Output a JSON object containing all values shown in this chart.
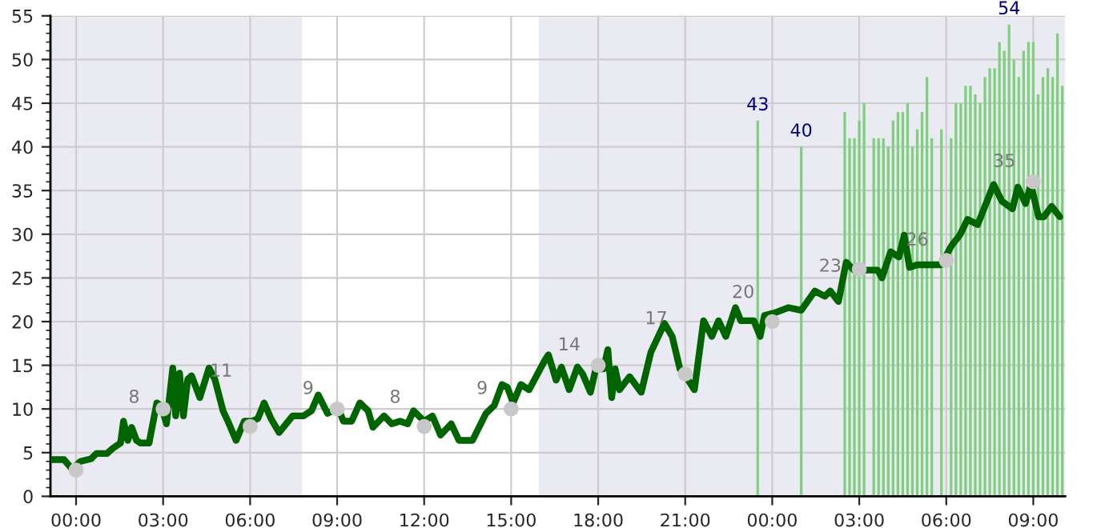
{
  "chart_data": {
    "type": "line",
    "xlim": [
      "1999-12-31T23:07",
      "2000-01-02T10:06"
    ],
    "xticks": [
      {
        "value": "2000-01-01T00:00",
        "label": "00:00"
      },
      {
        "value": "2000-01-01T03:00",
        "label": "03:00"
      },
      {
        "value": "2000-01-01T06:00",
        "label": "06:00"
      },
      {
        "value": "2000-01-01T09:00",
        "label": "09:00"
      },
      {
        "value": "2000-01-01T12:00",
        "label": "12:00"
      },
      {
        "value": "2000-01-01T15:00",
        "label": "15:00"
      },
      {
        "value": "2000-01-01T18:00",
        "label": "18:00"
      },
      {
        "value": "2000-01-01T21:00",
        "label": "21:00"
      },
      {
        "value": "2000-01-02T00:00",
        "label": "00:00"
      },
      {
        "value": "2000-01-02T03:00",
        "label": "03:00"
      },
      {
        "value": "2000-01-02T06:00",
        "label": "06:00"
      },
      {
        "value": "2000-01-02T09:00",
        "label": "09:00"
      }
    ],
    "ylim": [
      0,
      55
    ],
    "yticks": [
      0,
      5,
      10,
      15,
      20,
      25,
      30,
      35,
      40,
      45,
      50,
      55
    ],
    "grid": true,
    "bands": [
      {
        "axis": "x",
        "from": "1999-12-31T23:07",
        "to": "2000-01-01T07:47",
        "color": "#eaeaf2"
      },
      {
        "axis": "x",
        "from": "2000-01-01T15:57",
        "to": "2000-01-02T10:06",
        "color": "#eaeaf2"
      }
    ],
    "series": [
      {
        "type": "bar",
        "color": "#7fcf7f",
        "x": [
          "2000-01-01T23:30",
          "2000-01-02T01:00",
          "2000-01-02T02:30",
          "2000-01-02T02:40",
          "2000-01-02T02:50",
          "2000-01-02T03:00",
          "2000-01-02T03:10",
          "2000-01-02T03:30",
          "2000-01-02T03:40",
          "2000-01-02T03:50",
          "2000-01-02T04:00",
          "2000-01-02T04:10",
          "2000-01-02T04:20",
          "2000-01-02T04:30",
          "2000-01-02T04:40",
          "2000-01-02T04:50",
          "2000-01-02T05:00",
          "2000-01-02T05:10",
          "2000-01-02T05:20",
          "2000-01-02T05:30",
          "2000-01-02T05:50",
          "2000-01-02T06:10",
          "2000-01-02T06:20",
          "2000-01-02T06:30",
          "2000-01-02T06:40",
          "2000-01-02T06:50",
          "2000-01-02T07:00",
          "2000-01-02T07:10",
          "2000-01-02T07:20",
          "2000-01-02T07:30",
          "2000-01-02T07:40",
          "2000-01-02T07:50",
          "2000-01-02T08:00",
          "2000-01-02T08:10",
          "2000-01-02T08:20",
          "2000-01-02T08:30",
          "2000-01-02T08:40",
          "2000-01-02T08:50",
          "2000-01-02T09:00",
          "2000-01-02T09:10",
          "2000-01-02T09:20",
          "2000-01-02T09:30",
          "2000-01-02T09:40",
          "2000-01-02T09:50",
          "2000-01-02T10:00"
        ],
        "values": [
          43,
          40,
          44,
          41,
          41,
          43,
          45,
          41,
          41,
          41,
          40,
          43,
          44,
          44,
          45,
          40,
          42,
          44,
          48,
          41,
          42,
          41,
          45,
          45,
          47,
          47,
          46,
          45,
          48,
          49,
          49,
          52,
          51,
          54,
          50,
          48,
          51,
          52,
          52,
          46,
          48,
          49,
          48,
          53,
          47
        ],
        "value_labels": [
          "43",
          "40",
          null,
          null,
          null,
          null,
          null,
          null,
          null,
          null,
          null,
          null,
          null,
          null,
          null,
          null,
          null,
          null,
          null,
          null,
          null,
          null,
          null,
          null,
          null,
          null,
          null,
          null,
          null,
          null,
          null,
          null,
          null,
          "54",
          null,
          null,
          null,
          null,
          null,
          null,
          null,
          null,
          null,
          null,
          null
        ]
      },
      {
        "color": "#006400",
        "line_style": "solid",
        "marker": "none",
        "x": [
          "1999-12-31T23:08",
          "1999-12-31T23:35",
          "1999-12-31T23:52",
          "2000-01-01T00:09",
          "2000-01-01T00:31",
          "2000-01-01T00:42",
          "2000-01-01T01:04",
          "2000-01-01T01:16",
          "2000-01-01T01:32",
          "2000-01-01T01:38",
          "2000-01-01T01:47",
          "2000-01-01T01:55",
          "2000-01-01T02:05",
          "2000-01-01T02:13",
          "2000-01-01T02:31",
          "2000-01-01T02:47",
          "2000-01-01T02:56",
          "2000-01-01T03:07",
          "2000-01-01T03:20",
          "2000-01-01T03:26",
          "2000-01-01T03:34",
          "2000-01-01T03:42",
          "2000-01-01T03:51",
          "2000-01-01T03:59",
          "2000-01-01T04:16",
          "2000-01-01T04:35",
          "2000-01-01T04:47",
          "2000-01-01T05:04",
          "2000-01-01T05:14",
          "2000-01-01T05:31",
          "2000-01-01T05:48",
          "2000-01-01T06:04",
          "2000-01-01T06:16",
          "2000-01-01T06:29",
          "2000-01-01T06:43",
          "2000-01-01T07:00",
          "2000-01-01T07:28",
          "2000-01-01T07:50",
          "2000-01-01T08:07",
          "2000-01-01T08:21",
          "2000-01-01T08:40",
          "2000-01-01T09:02",
          "2000-01-01T09:13",
          "2000-01-01T09:30",
          "2000-01-01T09:47",
          "2000-01-01T10:04",
          "2000-01-01T10:14",
          "2000-01-01T10:37",
          "2000-01-01T10:53",
          "2000-01-01T11:10",
          "2000-01-01T11:26",
          "2000-01-01T11:38",
          "2000-01-01T12:00",
          "2000-01-01T12:17",
          "2000-01-01T12:34",
          "2000-01-01T12:56",
          "2000-01-01T13:12",
          "2000-01-01T13:40",
          "2000-01-01T14:08",
          "2000-01-01T14:25",
          "2000-01-01T14:41",
          "2000-01-01T14:52",
          "2000-01-01T15:04",
          "2000-01-01T15:20",
          "2000-01-01T15:37",
          "2000-01-01T16:10",
          "2000-01-01T16:17",
          "2000-01-01T16:33",
          "2000-01-01T16:44",
          "2000-01-01T17:00",
          "2000-01-01T17:17",
          "2000-01-01T17:28",
          "2000-01-01T17:44",
          "2000-01-01T17:55",
          "2000-01-01T18:11",
          "2000-01-01T18:20",
          "2000-01-01T18:28",
          "2000-01-01T18:35",
          "2000-01-01T18:44",
          "2000-01-01T19:05",
          "2000-01-01T19:29",
          "2000-01-01T19:49",
          "2000-01-01T20:17",
          "2000-01-01T20:33",
          "2000-01-01T20:49",
          "2000-01-01T21:05",
          "2000-01-01T21:19",
          "2000-01-01T21:38",
          "2000-01-01T21:55",
          "2000-01-01T22:09",
          "2000-01-01T22:24",
          "2000-01-01T22:44",
          "2000-01-01T22:55",
          "2000-01-01T23:22",
          "2000-01-01T23:35",
          "2000-01-01T23:44",
          "2000-01-02T00:05",
          "2000-01-02T00:33",
          "2000-01-02T01:00",
          "2000-01-02T01:28",
          "2000-01-02T01:49",
          "2000-01-02T02:00",
          "2000-01-02T02:17",
          "2000-01-02T02:33",
          "2000-01-02T02:49",
          "2000-01-02T03:38",
          "2000-01-02T03:47",
          "2000-01-02T04:05",
          "2000-01-02T04:22",
          "2000-01-02T04:33",
          "2000-01-02T04:44",
          "2000-01-02T05:00",
          "2000-01-02T05:28",
          "2000-01-02T05:49",
          "2000-01-02T06:11",
          "2000-01-02T06:28",
          "2000-01-02T06:44",
          "2000-01-02T07:05",
          "2000-01-02T07:38",
          "2000-01-02T07:55",
          "2000-01-02T08:17",
          "2000-01-02T08:28",
          "2000-01-02T08:44",
          "2000-01-02T08:55",
          "2000-01-02T09:11",
          "2000-01-02T09:22",
          "2000-01-02T09:38",
          "2000-01-02T09:55"
        ],
        "values": [
          4.2,
          4.2,
          3.1,
          4.0,
          4.3,
          4.9,
          4.9,
          5.5,
          6.1,
          8.6,
          6.4,
          7.9,
          6.4,
          6.1,
          6.1,
          10.7,
          10.4,
          8.3,
          14.7,
          9.2,
          14.1,
          9.2,
          13.4,
          13.8,
          11.3,
          14.7,
          13.4,
          9.8,
          8.6,
          6.4,
          8.6,
          8.6,
          8.9,
          10.7,
          8.9,
          7.3,
          9.2,
          9.2,
          9.8,
          11.6,
          9.5,
          10.1,
          8.6,
          8.6,
          10.7,
          9.8,
          7.9,
          9.2,
          8.3,
          8.6,
          8.3,
          9.8,
          8.6,
          9.2,
          7.0,
          8.3,
          6.4,
          6.4,
          9.5,
          10.4,
          12.8,
          12.5,
          10.7,
          12.8,
          12.2,
          15.6,
          16.2,
          13.3,
          14.8,
          12.2,
          14.8,
          14.0,
          11.9,
          14.6,
          14.6,
          16.8,
          11.3,
          14.6,
          12.2,
          13.7,
          11.9,
          16.5,
          19.8,
          18.3,
          14.6,
          13.4,
          12.2,
          20.1,
          18.3,
          20.1,
          18.3,
          21.6,
          20.1,
          20.1,
          18.3,
          20.7,
          21.0,
          21.6,
          21.3,
          23.5,
          22.9,
          23.5,
          22.3,
          26.8,
          25.9,
          25.9,
          25.0,
          28.0,
          27.4,
          29.9,
          26.2,
          26.5,
          26.5,
          26.5,
          28.7,
          29.9,
          31.7,
          31.1,
          35.7,
          33.8,
          32.9,
          35.4,
          33.5,
          35.7,
          32.0,
          32.0,
          33.2,
          32.0
        ]
      },
      {
        "type": "scatter",
        "color": "#c8c8c8",
        "marker": "circle",
        "x": [
          "2000-01-01T00:00",
          "2000-01-01T03:00",
          "2000-01-01T06:00",
          "2000-01-01T09:00",
          "2000-01-01T12:00",
          "2000-01-01T15:00",
          "2000-01-01T18:00",
          "2000-01-01T21:00",
          "2000-01-02T00:00",
          "2000-01-02T03:00",
          "2000-01-02T06:00",
          "2000-01-02T09:00"
        ],
        "values": [
          3,
          10,
          8,
          10,
          8,
          10,
          15,
          14,
          20,
          26,
          27,
          36
        ]
      }
    ],
    "annotations": [
      {
        "text": "8",
        "x": "2000-01-01T02:00",
        "y": 8
      },
      {
        "text": "11",
        "x": "2000-01-01T05:00",
        "y": 11
      },
      {
        "text": "9",
        "x": "2000-01-01T08:00",
        "y": 9
      },
      {
        "text": "8",
        "x": "2000-01-01T11:00",
        "y": 8
      },
      {
        "text": "9",
        "x": "2000-01-01T14:00",
        "y": 9
      },
      {
        "text": "14",
        "x": "2000-01-01T17:00",
        "y": 14
      },
      {
        "text": "17",
        "x": "2000-01-01T20:00",
        "y": 17
      },
      {
        "text": "20",
        "x": "2000-01-01T23:00",
        "y": 20
      },
      {
        "text": "23",
        "x": "2000-01-02T02:00",
        "y": 23
      },
      {
        "text": "26",
        "x": "2000-01-02T05:00",
        "y": 26
      },
      {
        "text": "35",
        "x": "2000-01-02T08:00",
        "y": 35
      }
    ]
  }
}
